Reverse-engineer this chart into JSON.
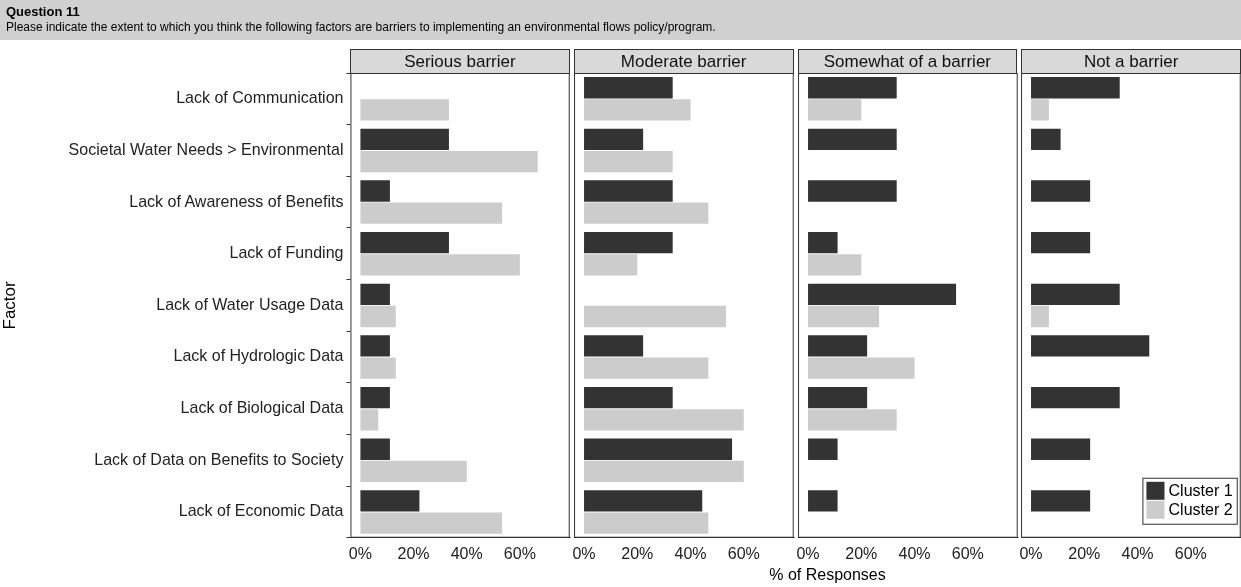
{
  "chart_data": [
    {
      "type": "other",
      "title": "Question 11",
      "subtitle": "Please indicate the extent to which you think the following factors are barriers to implementing an environmental flows policy/program."
    },
    {
      "type": "bar",
      "orientation": "horizontal",
      "title": "Serious barrier",
      "ylabel": "Factor",
      "categories": [
        "Lack of Communication",
        "Societal Water Needs > Environmental",
        "Lack of Awareness of Benefits",
        "Lack of Funding",
        "Lack of Water Usage Data",
        "Lack of Hydrologic Data",
        "Lack of Biological Data",
        "Lack of Data on Benefits to Society",
        "Lack of Economic Data"
      ],
      "series": [
        {
          "color": "#333333",
          "values": [
            null,
            33.3,
            11.1,
            33.3,
            11.1,
            11.1,
            11.1,
            11.1,
            22.2
          ]
        },
        {
          "color": "#cccccc",
          "values": [
            33.3,
            66.7,
            53.3,
            60,
            13.3,
            13.3,
            6.7,
            40,
            53.3
          ]
        }
      ],
      "xlim": [
        -3.75,
        78.75
      ],
      "xticks": [
        {
          "value": 0,
          "label": "0%"
        },
        {
          "value": 20,
          "label": "20%"
        },
        {
          "value": 40,
          "label": "40%"
        },
        {
          "value": 60,
          "label": "60%"
        }
      ],
      "grid": false,
      "legend": false
    },
    {
      "type": "bar",
      "orientation": "horizontal",
      "title": "Moderate barrier",
      "tick_labels": "x",
      "categories": [
        null,
        null,
        null,
        null,
        null,
        null,
        null,
        null,
        null
      ],
      "series": [
        {
          "color": "#333333",
          "values": [
            33.3,
            22.2,
            33.3,
            33.3,
            null,
            22.2,
            33.3,
            55.6,
            44.4
          ]
        },
        {
          "color": "#cccccc",
          "values": [
            40,
            33.3,
            46.7,
            20,
            53.3,
            46.7,
            60,
            60,
            46.7
          ]
        }
      ],
      "xlim": [
        -3.75,
        78.75
      ],
      "xticks": [
        {
          "value": 0,
          "label": "0%"
        },
        {
          "value": 20,
          "label": "20%"
        },
        {
          "value": 40,
          "label": "40%"
        },
        {
          "value": 60,
          "label": "60%"
        }
      ],
      "grid": false,
      "legend": false
    },
    {
      "type": "bar",
      "orientation": "horizontal",
      "title": "Somewhat of a barrier",
      "tick_labels": "x",
      "xlabel": "% of Responses",
      "categories": [
        null,
        null,
        null,
        null,
        null,
        null,
        null,
        null,
        null
      ],
      "series": [
        {
          "color": "#333333",
          "values": [
            33.3,
            33.3,
            33.3,
            11.1,
            55.6,
            22.2,
            22.2,
            11.1,
            11.1
          ]
        },
        {
          "color": "#cccccc",
          "values": [
            20,
            null,
            null,
            20,
            26.7,
            40,
            33.3,
            null,
            null
          ]
        }
      ],
      "xlim": [
        -3.75,
        78.75
      ],
      "xticks": [
        {
          "value": 0,
          "label": "0%"
        },
        {
          "value": 20,
          "label": "20%"
        },
        {
          "value": 40,
          "label": "40%"
        },
        {
          "value": 60,
          "label": "60%"
        }
      ],
      "grid": false,
      "legend": false
    },
    {
      "type": "bar",
      "orientation": "horizontal",
      "title": "Not a barrier",
      "tick_labels": "x",
      "categories": [
        null,
        null,
        null,
        null,
        null,
        null,
        null,
        null,
        null
      ],
      "series": [
        {
          "name": "Cluster 1",
          "color": "#333333",
          "values": [
            33.3,
            11.1,
            22.2,
            22.2,
            33.3,
            44.4,
            33.3,
            22.2,
            22.2
          ]
        },
        {
          "name": "Cluster 2",
          "color": "#cccccc",
          "values": [
            6.7,
            null,
            null,
            null,
            6.7,
            null,
            null,
            null,
            null
          ]
        }
      ],
      "xlim": [
        -3.75,
        78.75
      ],
      "xticks": [
        {
          "value": 0,
          "label": "0%"
        },
        {
          "value": 20,
          "label": "20%"
        },
        {
          "value": 40,
          "label": "40%"
        },
        {
          "value": 60,
          "label": "60%"
        }
      ],
      "grid": false,
      "legend": "bottom right"
    }
  ]
}
